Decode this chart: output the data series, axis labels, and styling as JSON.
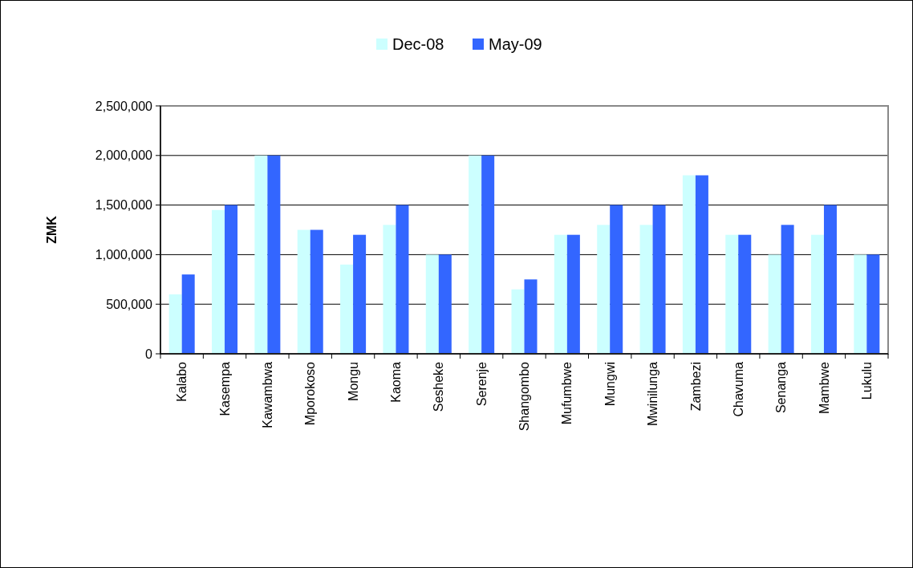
{
  "chart_data": {
    "type": "bar",
    "ylabel": "ZMK",
    "categories": [
      "Kalabo",
      "Kasempa",
      "Kawambwa",
      "Mporokoso",
      "Mongu",
      "Kaoma",
      "Sesheke",
      "Serenje",
      "Shangombo",
      "Mufumbwe",
      "Mungwi",
      "Mwinilunga",
      "Zambezi",
      "Chavuma",
      "Senanga",
      "Mambwe",
      "Lukulu"
    ],
    "series": [
      {
        "name": "Dec-08",
        "color": "#ccffff",
        "values": [
          600000,
          1450000,
          2000000,
          1250000,
          900000,
          1300000,
          1000000,
          2000000,
          650000,
          1200000,
          1300000,
          1300000,
          1800000,
          1200000,
          1000000,
          1200000,
          1000000
        ]
      },
      {
        "name": "May-09",
        "color": "#3366ff",
        "values": [
          800000,
          1500000,
          2000000,
          1250000,
          1200000,
          1500000,
          1000000,
          2000000,
          750000,
          1200000,
          1500000,
          1500000,
          1800000,
          1200000,
          1300000,
          1500000,
          1000000
        ]
      }
    ],
    "ylim": [
      0,
      2500000
    ],
    "yticks": [
      {
        "value": 0,
        "label": "0"
      },
      {
        "value": 500000,
        "label": "500,000"
      },
      {
        "value": 1000000,
        "label": "1,000,000"
      },
      {
        "value": 1500000,
        "label": "1,500,000"
      },
      {
        "value": 2000000,
        "label": "2,000,000"
      },
      {
        "value": 2500000,
        "label": "2,500,000"
      }
    ],
    "grid": "y",
    "legend": "top"
  }
}
